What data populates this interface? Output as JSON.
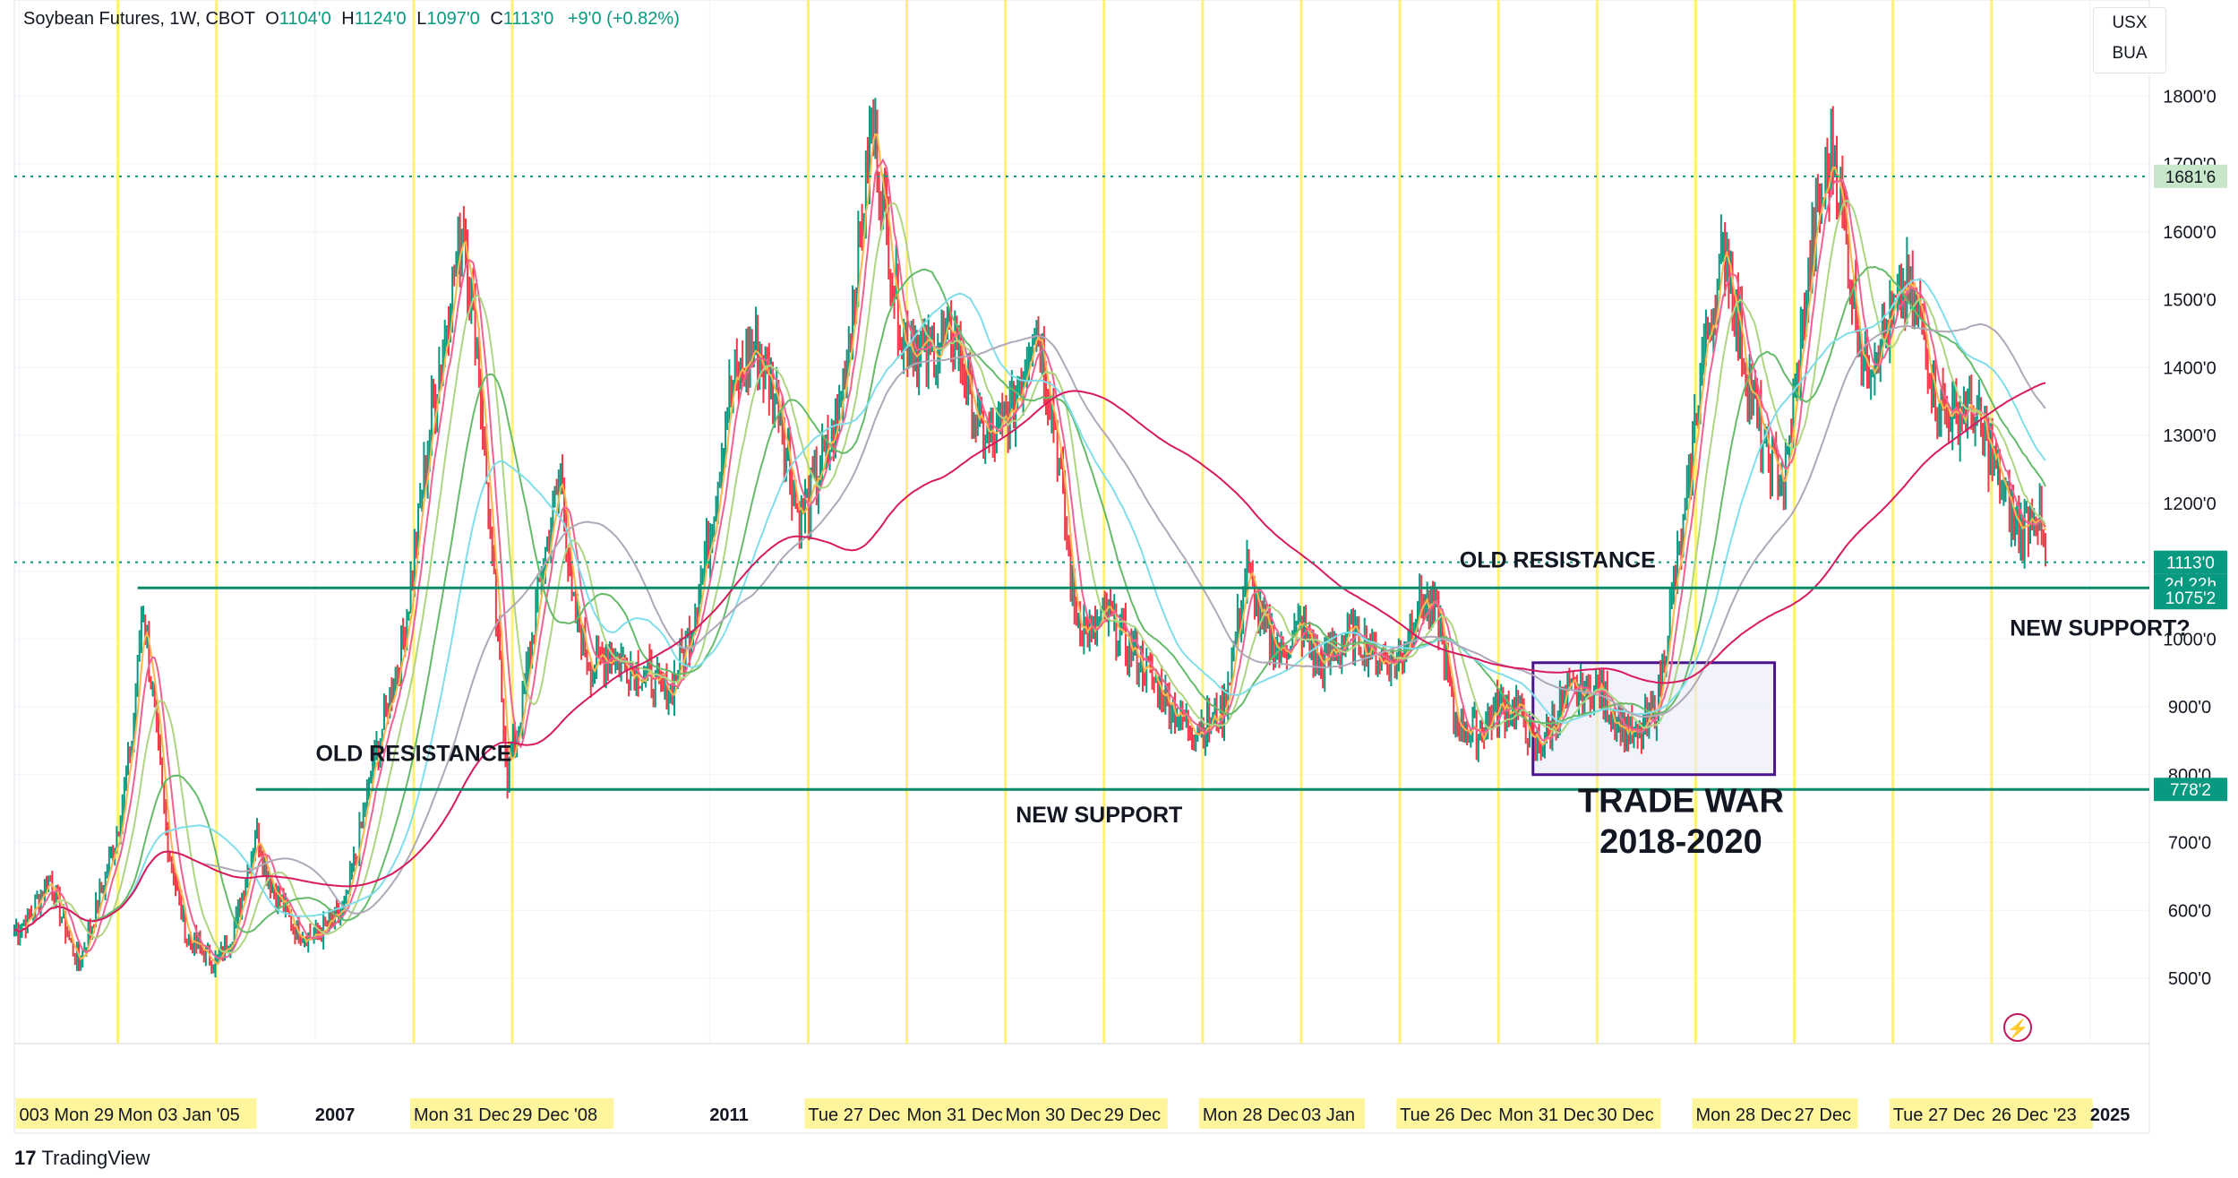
{
  "header": {
    "symbol": "Soybean Futures, 1W, CBOT",
    "o_label": "O",
    "o_value": "1104'0",
    "h_label": "H",
    "h_value": "1124'0",
    "l_label": "L",
    "l_value": "1097'0",
    "c_label": "C",
    "c_value": "1113'0",
    "change": "+9'0 (+0.82%)"
  },
  "currency": {
    "unit": "USX",
    "sub": "BUA"
  },
  "branding": {
    "name": "TradingView",
    "mark": "17"
  },
  "colors": {
    "up": "#089981",
    "down": "#f23645",
    "support_line": "#0d8a6a",
    "price_tag": "#089981",
    "highlight_band": "#fff59d",
    "tradewar_border": "#4a148c",
    "tradewar_fill": "#e8eaf6"
  },
  "chart_data": {
    "type": "line",
    "title": "",
    "timeframe": "1W",
    "exchange": "CBOT",
    "ylim": [
      400,
      1850
    ],
    "y_ticks": [
      "500'0",
      "600'0",
      "700'0",
      "800'0",
      "900'0",
      "1000'0",
      "1100'0",
      "1200'0",
      "1300'0",
      "1400'0",
      "1500'0",
      "1600'0",
      "1700'0",
      "1800'0"
    ],
    "x_range": [
      2003.95,
      2025.6
    ],
    "x_ticks": [
      {
        "t": 2004.0,
        "label": "003 Mon 29 Dec"
      },
      {
        "t": 2005.0,
        "label": "Mon 03 Jan '05"
      },
      {
        "t": 2007.0,
        "label": "2007"
      },
      {
        "t": 2008.0,
        "label": "Mon 31 Dec '07"
      },
      {
        "t": 2009.0,
        "label": "29 Dec '08"
      },
      {
        "t": 2011.0,
        "label": "2011"
      },
      {
        "t": 2012.0,
        "label": "Tue 27 Dec"
      },
      {
        "t": 2013.0,
        "label": "Mon 31 Dec"
      },
      {
        "t": 2014.0,
        "label": "Mon 30 Dec '13"
      },
      {
        "t": 2015.0,
        "label": "29 Dec"
      },
      {
        "t": 2016.0,
        "label": "Mon 28 Dec '15"
      },
      {
        "t": 2017.0,
        "label": "03 Jan"
      },
      {
        "t": 2018.0,
        "label": "Tue 26 Dec"
      },
      {
        "t": 2019.0,
        "label": "Mon 31 Dec '18"
      },
      {
        "t": 2020.0,
        "label": "30 Dec"
      },
      {
        "t": 2021.0,
        "label": "Mon 28 Dec '20"
      },
      {
        "t": 2022.0,
        "label": "27 Dec"
      },
      {
        "t": 2023.0,
        "label": "Tue 27 Dec '22"
      },
      {
        "t": 2024.0,
        "label": "26 Dec '23"
      },
      {
        "t": 2025.0,
        "label": "2025"
      }
    ],
    "highlight_years": [
      2005,
      2006,
      2008,
      2009,
      2012,
      2013,
      2014,
      2015,
      2016,
      2017,
      2018,
      2019,
      2020,
      2021,
      2022,
      2023,
      2024
    ],
    "price_anchors": [
      [
        2003.95,
        570
      ],
      [
        2004.1,
        590
      ],
      [
        2004.3,
        650
      ],
      [
        2004.5,
        560
      ],
      [
        2004.6,
        520
      ],
      [
        2004.8,
        610
      ],
      [
        2005.0,
        720
      ],
      [
        2005.15,
        860
      ],
      [
        2005.25,
        1050
      ],
      [
        2005.35,
        920
      ],
      [
        2005.5,
        700
      ],
      [
        2005.7,
        560
      ],
      [
        2006.0,
        520
      ],
      [
        2006.2,
        580
      ],
      [
        2006.4,
        720
      ],
      [
        2006.55,
        640
      ],
      [
        2006.8,
        570
      ],
      [
        2007.0,
        560
      ],
      [
        2007.3,
        600
      ],
      [
        2007.6,
        820
      ],
      [
        2007.9,
        1000
      ],
      [
        2008.2,
        1350
      ],
      [
        2008.5,
        1620
      ],
      [
        2008.65,
        1420
      ],
      [
        2008.8,
        1100
      ],
      [
        2008.95,
        800
      ],
      [
        2009.1,
        900
      ],
      [
        2009.3,
        1100
      ],
      [
        2009.5,
        1250
      ],
      [
        2009.6,
        1050
      ],
      [
        2009.8,
        960
      ],
      [
        2010.0,
        980
      ],
      [
        2010.3,
        950
      ],
      [
        2010.6,
        920
      ],
      [
        2010.8,
        1010
      ],
      [
        2011.0,
        1150
      ],
      [
        2011.2,
        1360
      ],
      [
        2011.45,
        1430
      ],
      [
        2011.7,
        1350
      ],
      [
        2011.9,
        1180
      ],
      [
        2012.0,
        1200
      ],
      [
        2012.3,
        1320
      ],
      [
        2012.5,
        1550
      ],
      [
        2012.65,
        1770
      ],
      [
        2012.8,
        1600
      ],
      [
        2012.95,
        1450
      ],
      [
        2013.2,
        1420
      ],
      [
        2013.5,
        1450
      ],
      [
        2013.7,
        1320
      ],
      [
        2013.9,
        1290
      ],
      [
        2014.1,
        1350
      ],
      [
        2014.3,
        1480
      ],
      [
        2014.5,
        1320
      ],
      [
        2014.7,
        1040
      ],
      [
        2014.9,
        1000
      ],
      [
        2015.0,
        1040
      ],
      [
        2015.3,
        980
      ],
      [
        2015.5,
        940
      ],
      [
        2015.8,
        880
      ],
      [
        2016.0,
        870
      ],
      [
        2016.2,
        890
      ],
      [
        2016.45,
        1100
      ],
      [
        2016.6,
        1020
      ],
      [
        2016.8,
        980
      ],
      [
        2017.0,
        1020
      ],
      [
        2017.2,
        960
      ],
      [
        2017.5,
        1010
      ],
      [
        2017.8,
        970
      ],
      [
        2018.0,
        970
      ],
      [
        2018.2,
        1060
      ],
      [
        2018.4,
        1030
      ],
      [
        2018.55,
        880
      ],
      [
        2018.8,
        860
      ],
      [
        2019.0,
        900
      ],
      [
        2019.2,
        900
      ],
      [
        2019.35,
        840
      ],
      [
        2019.5,
        860
      ],
      [
        2019.7,
        920
      ],
      [
        2019.9,
        920
      ],
      [
        2020.0,
        930
      ],
      [
        2020.2,
        880
      ],
      [
        2020.4,
        850
      ],
      [
        2020.6,
        900
      ],
      [
        2020.75,
        1050
      ],
      [
        2020.9,
        1180
      ],
      [
        2021.05,
        1400
      ],
      [
        2021.3,
        1580
      ],
      [
        2021.5,
        1400
      ],
      [
        2021.7,
        1280
      ],
      [
        2021.9,
        1230
      ],
      [
        2022.0,
        1350
      ],
      [
        2022.2,
        1600
      ],
      [
        2022.4,
        1720
      ],
      [
        2022.55,
        1560
      ],
      [
        2022.7,
        1400
      ],
      [
        2022.85,
        1440
      ],
      [
        2023.0,
        1480
      ],
      [
        2023.15,
        1520
      ],
      [
        2023.3,
        1460
      ],
      [
        2023.45,
        1350
      ],
      [
        2023.6,
        1330
      ],
      [
        2023.8,
        1340
      ],
      [
        2024.0,
        1270
      ],
      [
        2024.2,
        1180
      ],
      [
        2024.3,
        1160
      ],
      [
        2024.45,
        1200
      ],
      [
        2024.55,
        1113
      ]
    ],
    "horizontal_lines": [
      {
        "price": 1075.25,
        "label": "1075'2",
        "start": 2005.2
      },
      {
        "price": 778.25,
        "label": "778'2",
        "start": 2006.4
      }
    ],
    "dotted_lines": [
      {
        "price": 1681.75,
        "label": "1681'6"
      },
      {
        "price": 1113,
        "label": "1113'0"
      }
    ],
    "countdown": "2d 22h",
    "tradewar_box": {
      "x0": 2019.35,
      "x1": 2021.8,
      "y0": 800,
      "y1": 965
    },
    "annotations": [
      {
        "text": "OLD RESISTANCE",
        "t": 2008.0,
        "p": 820
      },
      {
        "text": "NEW SUPPORT",
        "t": 2014.95,
        "p": 730
      },
      {
        "text": "OLD RESISTANCE",
        "t": 2019.6,
        "p": 1105
      },
      {
        "text": "NEW SUPPORT?",
        "t": 2025.1,
        "p": 1005
      },
      {
        "text": "TRADE WAR",
        "t": 2020.85,
        "p": 745
      },
      {
        "text": "2018-2020",
        "t": 2020.85,
        "p": 685
      }
    ]
  }
}
